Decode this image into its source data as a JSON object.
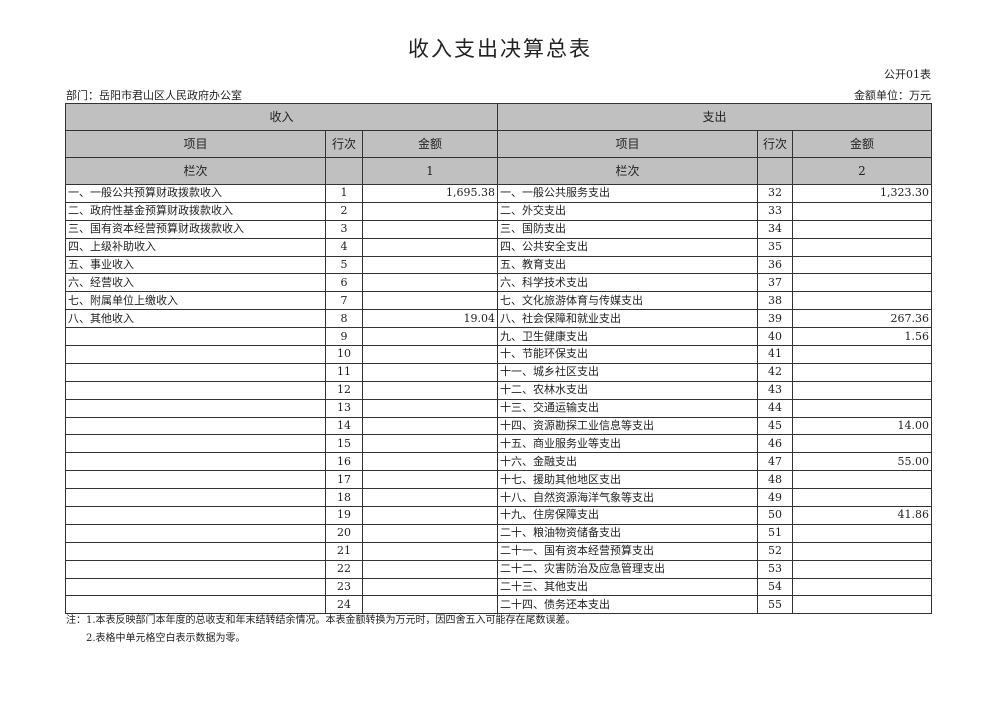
{
  "title": "收入支出决算总表",
  "form_code": "公开01表",
  "department": "部门：岳阳市君山区人民政府办公室",
  "unit": "金额单位：万元",
  "headers": {
    "income": "收入",
    "expense": "支出",
    "item": "项目",
    "line": "行次",
    "amount": "金额",
    "column_label": "栏次",
    "income_col": "1",
    "expense_col": "2"
  },
  "rows": [
    {
      "in_item": "一、一般公共预算财政拨款收入",
      "in_line": "1",
      "in_amount": "1,695.38",
      "out_item": "一、一般公共服务支出",
      "out_line": "32",
      "out_amount": "1,323.30"
    },
    {
      "in_item": "二、政府性基金预算财政拨款收入",
      "in_line": "2",
      "in_amount": "",
      "out_item": "二、外交支出",
      "out_line": "33",
      "out_amount": ""
    },
    {
      "in_item": "三、国有资本经营预算财政拨款收入",
      "in_line": "3",
      "in_amount": "",
      "out_item": "三、国防支出",
      "out_line": "34",
      "out_amount": ""
    },
    {
      "in_item": "四、上级补助收入",
      "in_line": "4",
      "in_amount": "",
      "out_item": "四、公共安全支出",
      "out_line": "35",
      "out_amount": ""
    },
    {
      "in_item": "五、事业收入",
      "in_line": "5",
      "in_amount": "",
      "out_item": "五、教育支出",
      "out_line": "36",
      "out_amount": ""
    },
    {
      "in_item": "六、经营收入",
      "in_line": "6",
      "in_amount": "",
      "out_item": "六、科学技术支出",
      "out_line": "37",
      "out_amount": ""
    },
    {
      "in_item": "七、附属单位上缴收入",
      "in_line": "7",
      "in_amount": "",
      "out_item": "七、文化旅游体育与传媒支出",
      "out_line": "38",
      "out_amount": ""
    },
    {
      "in_item": "八、其他收入",
      "in_line": "8",
      "in_amount": "19.04",
      "out_item": "八、社会保障和就业支出",
      "out_line": "39",
      "out_amount": "267.36"
    },
    {
      "in_item": "",
      "in_line": "9",
      "in_amount": "",
      "out_item": "九、卫生健康支出",
      "out_line": "40",
      "out_amount": "1.56"
    },
    {
      "in_item": "",
      "in_line": "10",
      "in_amount": "",
      "out_item": "十、节能环保支出",
      "out_line": "41",
      "out_amount": ""
    },
    {
      "in_item": "",
      "in_line": "11",
      "in_amount": "",
      "out_item": "十一、城乡社区支出",
      "out_line": "42",
      "out_amount": ""
    },
    {
      "in_item": "",
      "in_line": "12",
      "in_amount": "",
      "out_item": "十二、农林水支出",
      "out_line": "43",
      "out_amount": ""
    },
    {
      "in_item": "",
      "in_line": "13",
      "in_amount": "",
      "out_item": "十三、交通运输支出",
      "out_line": "44",
      "out_amount": ""
    },
    {
      "in_item": "",
      "in_line": "14",
      "in_amount": "",
      "out_item": "十四、资源勘探工业信息等支出",
      "out_line": "45",
      "out_amount": "14.00"
    },
    {
      "in_item": "",
      "in_line": "15",
      "in_amount": "",
      "out_item": "十五、商业服务业等支出",
      "out_line": "46",
      "out_amount": ""
    },
    {
      "in_item": "",
      "in_line": "16",
      "in_amount": "",
      "out_item": "十六、金融支出",
      "out_line": "47",
      "out_amount": "55.00"
    },
    {
      "in_item": "",
      "in_line": "17",
      "in_amount": "",
      "out_item": "十七、援助其他地区支出",
      "out_line": "48",
      "out_amount": ""
    },
    {
      "in_item": "",
      "in_line": "18",
      "in_amount": "",
      "out_item": "十八、自然资源海洋气象等支出",
      "out_line": "49",
      "out_amount": ""
    },
    {
      "in_item": "",
      "in_line": "19",
      "in_amount": "",
      "out_item": "十九、住房保障支出",
      "out_line": "50",
      "out_amount": "41.86"
    },
    {
      "in_item": "",
      "in_line": "20",
      "in_amount": "",
      "out_item": "二十、粮油物资储备支出",
      "out_line": "51",
      "out_amount": ""
    },
    {
      "in_item": "",
      "in_line": "21",
      "in_amount": "",
      "out_item": "二十一、国有资本经营预算支出",
      "out_line": "52",
      "out_amount": ""
    },
    {
      "in_item": "",
      "in_line": "22",
      "in_amount": "",
      "out_item": "二十二、灾害防治及应急管理支出",
      "out_line": "53",
      "out_amount": ""
    },
    {
      "in_item": "",
      "in_line": "23",
      "in_amount": "",
      "out_item": "二十三、其他支出",
      "out_line": "54",
      "out_amount": ""
    },
    {
      "in_item": "",
      "in_line": "24",
      "in_amount": "",
      "out_item": "二十四、债务还本支出",
      "out_line": "55",
      "out_amount": ""
    }
  ],
  "notes": [
    "注：1.本表反映部门本年度的总收支和年末结转结余情况。本表金额转换为万元时，因四舍五入可能存在尾数误差。",
    "2.表格中单元格空白表示数据为零。"
  ]
}
